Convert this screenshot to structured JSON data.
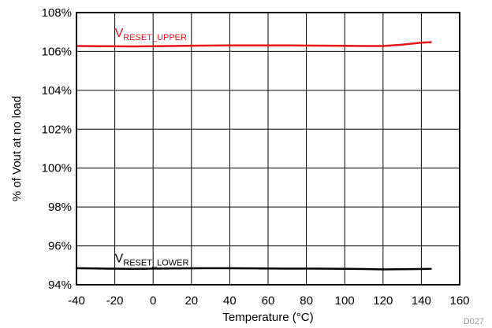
{
  "chart_data": {
    "type": "line",
    "xlabel": "Temperature (°C)",
    "ylabel": "% of Vout at no load",
    "figure_id": "D027",
    "xlim": [
      -40,
      160
    ],
    "ylim": [
      94,
      108
    ],
    "x_ticks": [
      -40,
      -20,
      0,
      20,
      40,
      60,
      80,
      100,
      120,
      140,
      160
    ],
    "x_tick_labels": [
      "-40",
      "-20",
      "0",
      "20",
      "40",
      "60",
      "80",
      "100",
      "120",
      "140",
      "160"
    ],
    "y_ticks": [
      94,
      96,
      98,
      100,
      102,
      104,
      106,
      108
    ],
    "y_tick_labels": [
      "94%",
      "96%",
      "98%",
      "100%",
      "102%",
      "104%",
      "106%",
      "108%"
    ],
    "grid": true,
    "series": [
      {
        "name_main": "V",
        "name_sub": "RESET_UPPER",
        "color": "#e8141c",
        "label_anchor": {
          "x": -20,
          "y": 106.75
        },
        "x": [
          -40,
          -25,
          -10,
          0,
          10,
          25,
          40,
          55,
          70,
          85,
          100,
          110,
          120,
          130,
          140,
          145
        ],
        "y": [
          106.28,
          106.27,
          106.26,
          106.27,
          106.28,
          106.3,
          106.31,
          106.31,
          106.31,
          106.3,
          106.29,
          106.28,
          106.28,
          106.35,
          106.45,
          106.48
        ]
      },
      {
        "name_main": "V",
        "name_sub": "RESET_LOWER",
        "color": "#000000",
        "label_anchor": {
          "x": -20,
          "y": 95.15
        },
        "x": [
          -40,
          -25,
          -10,
          0,
          10,
          25,
          40,
          55,
          70,
          85,
          100,
          110,
          120,
          130,
          140,
          145
        ],
        "y": [
          94.85,
          94.83,
          94.82,
          94.83,
          94.84,
          94.85,
          94.85,
          94.84,
          94.83,
          94.83,
          94.82,
          94.81,
          94.79,
          94.8,
          94.81,
          94.82
        ]
      }
    ]
  }
}
